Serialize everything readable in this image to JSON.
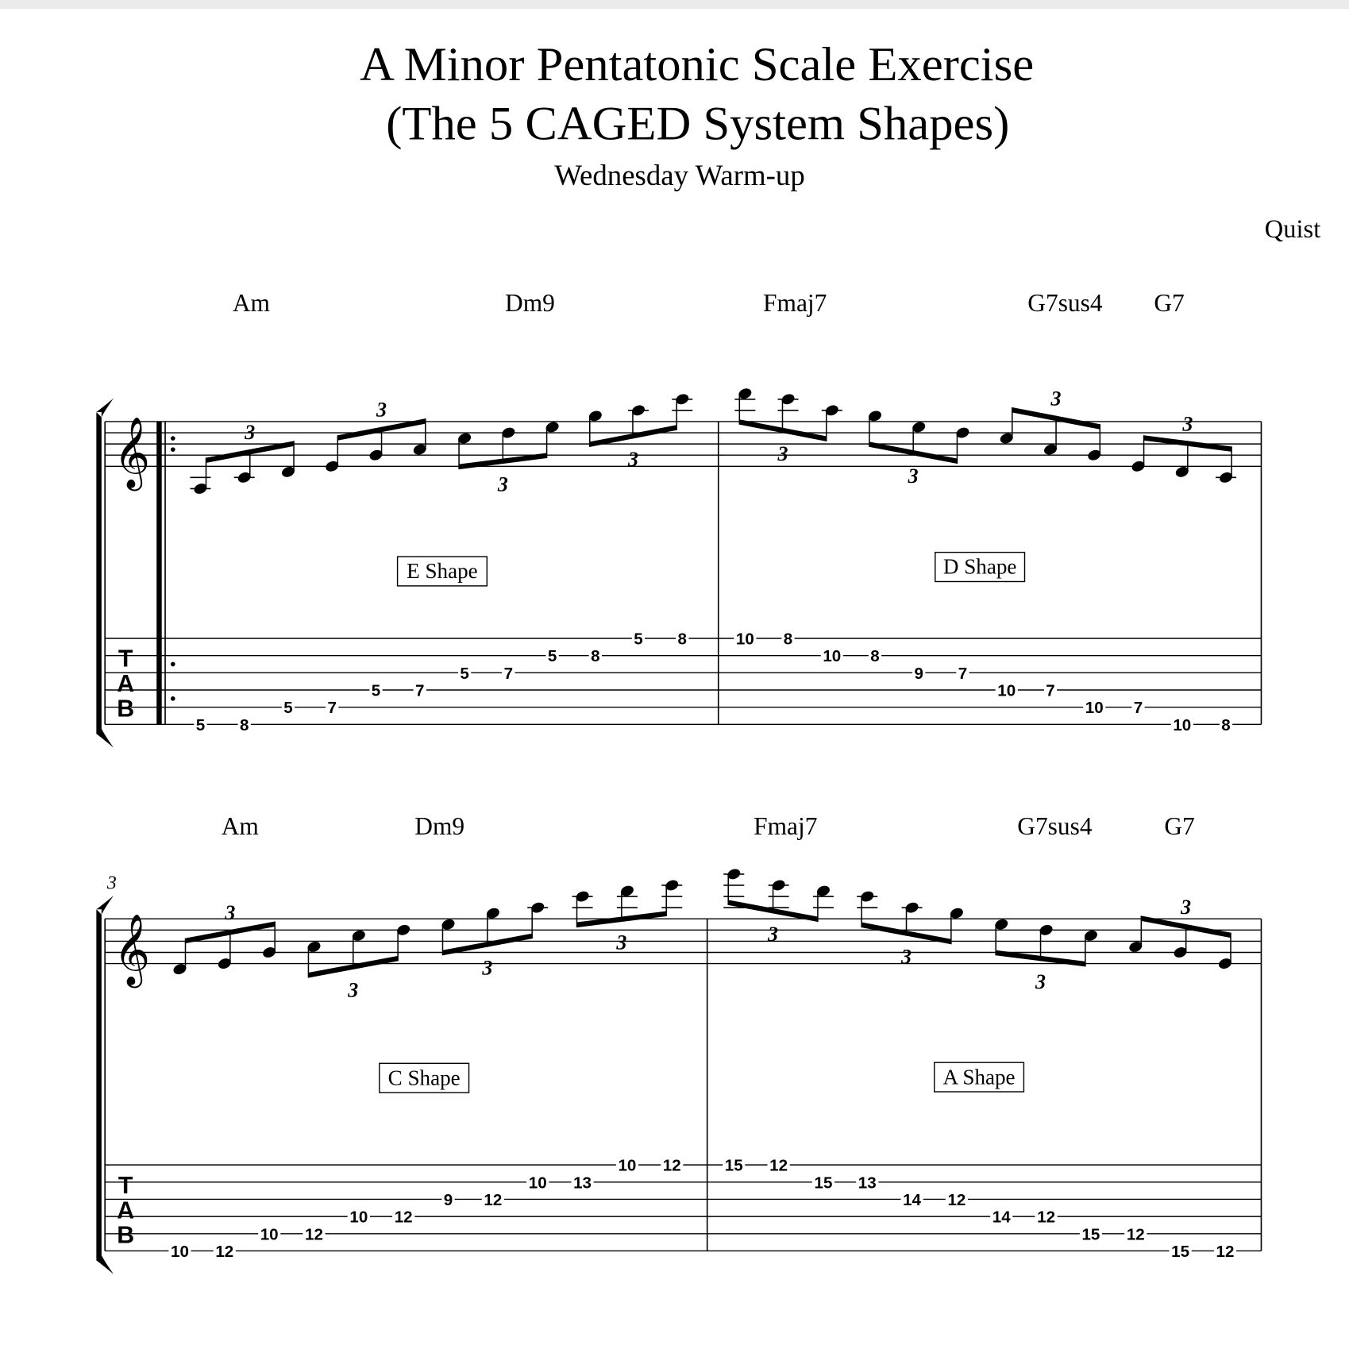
{
  "title_line1": "A Minor Pentatonic Scale Exercise",
  "title_line2": "(The 5 CAGED System Shapes)",
  "subtitle": "Wednesday Warm-up",
  "composer": "Quist",
  "clef": "treble",
  "tab_label": [
    "T",
    "A",
    "B"
  ],
  "tuplet_label": "3",
  "systems": [
    {
      "measure_number": "",
      "repeat_start": true,
      "chords": [
        "Am",
        "Dm9",
        "Fmaj7",
        "G7sus4",
        "G7"
      ],
      "shapes": [
        "E Shape",
        "D Shape"
      ],
      "measures": [
        [
          {
            "pitch": "A3",
            "string": 6,
            "fret": "5"
          },
          {
            "pitch": "C4",
            "string": 6,
            "fret": "8"
          },
          {
            "pitch": "D4",
            "string": 5,
            "fret": "5"
          },
          {
            "pitch": "E4",
            "string": 5,
            "fret": "7"
          },
          {
            "pitch": "G4",
            "string": 4,
            "fret": "5"
          },
          {
            "pitch": "A4",
            "string": 4,
            "fret": "7"
          },
          {
            "pitch": "C5",
            "string": 3,
            "fret": "5"
          },
          {
            "pitch": "D5",
            "string": 3,
            "fret": "7"
          },
          {
            "pitch": "E5",
            "string": 2,
            "fret": "5"
          },
          {
            "pitch": "G5",
            "string": 2,
            "fret": "8"
          },
          {
            "pitch": "A5",
            "string": 1,
            "fret": "5"
          },
          {
            "pitch": "C6",
            "string": 1,
            "fret": "8"
          }
        ],
        [
          {
            "pitch": "D6",
            "string": 1,
            "fret": "10"
          },
          {
            "pitch": "C6",
            "string": 1,
            "fret": "8"
          },
          {
            "pitch": "A5",
            "string": 2,
            "fret": "10"
          },
          {
            "pitch": "G5",
            "string": 2,
            "fret": "8"
          },
          {
            "pitch": "E5",
            "string": 3,
            "fret": "9"
          },
          {
            "pitch": "D5",
            "string": 3,
            "fret": "7"
          },
          {
            "pitch": "C5",
            "string": 4,
            "fret": "10"
          },
          {
            "pitch": "A4",
            "string": 4,
            "fret": "7"
          },
          {
            "pitch": "G4",
            "string": 5,
            "fret": "10"
          },
          {
            "pitch": "E4",
            "string": 5,
            "fret": "7"
          },
          {
            "pitch": "D4",
            "string": 6,
            "fret": "10"
          },
          {
            "pitch": "C4",
            "string": 6,
            "fret": "8"
          }
        ]
      ]
    },
    {
      "measure_number": "3",
      "repeat_start": false,
      "chords": [
        "Am",
        "Dm9",
        "Fmaj7",
        "G7sus4",
        "G7"
      ],
      "shapes": [
        "C Shape",
        "A Shape"
      ],
      "measures": [
        [
          {
            "pitch": "D4",
            "string": 6,
            "fret": "10"
          },
          {
            "pitch": "E4",
            "string": 6,
            "fret": "12"
          },
          {
            "pitch": "G4",
            "string": 5,
            "fret": "10"
          },
          {
            "pitch": "A4",
            "string": 5,
            "fret": "12"
          },
          {
            "pitch": "C5",
            "string": 4,
            "fret": "10"
          },
          {
            "pitch": "D5",
            "string": 4,
            "fret": "12"
          },
          {
            "pitch": "E5",
            "string": 3,
            "fret": "9"
          },
          {
            "pitch": "G5",
            "string": 3,
            "fret": "12"
          },
          {
            "pitch": "A5",
            "string": 2,
            "fret": "10"
          },
          {
            "pitch": "C6",
            "string": 2,
            "fret": "13"
          },
          {
            "pitch": "D6",
            "string": 1,
            "fret": "10"
          },
          {
            "pitch": "E6",
            "string": 1,
            "fret": "12"
          }
        ],
        [
          {
            "pitch": "G6",
            "string": 1,
            "fret": "15"
          },
          {
            "pitch": "E6",
            "string": 1,
            "fret": "12"
          },
          {
            "pitch": "D6",
            "string": 2,
            "fret": "15"
          },
          {
            "pitch": "C6",
            "string": 2,
            "fret": "13"
          },
          {
            "pitch": "A5",
            "string": 3,
            "fret": "14"
          },
          {
            "pitch": "G5",
            "string": 3,
            "fret": "12"
          },
          {
            "pitch": "E5",
            "string": 4,
            "fret": "14"
          },
          {
            "pitch": "D5",
            "string": 4,
            "fret": "12"
          },
          {
            "pitch": "C5",
            "string": 5,
            "fret": "15"
          },
          {
            "pitch": "A4",
            "string": 5,
            "fret": "12"
          },
          {
            "pitch": "G4",
            "string": 6,
            "fret": "15"
          },
          {
            "pitch": "E4",
            "string": 6,
            "fret": "12"
          }
        ]
      ]
    }
  ]
}
